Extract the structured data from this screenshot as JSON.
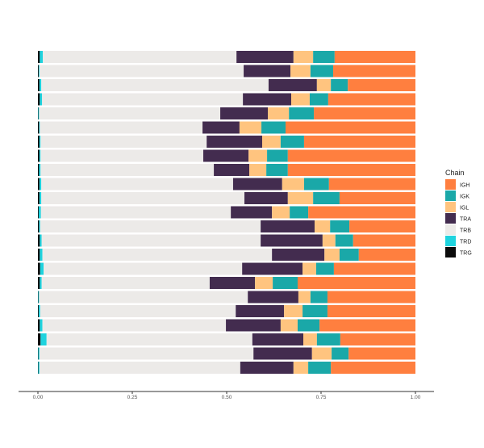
{
  "chart_data": {
    "type": "bar",
    "orientation": "horizontal",
    "stacked": true,
    "xlim": [
      0,
      1
    ],
    "x_ticks": [
      "0.00",
      "0.25",
      "0.50",
      "0.75",
      "1.00"
    ],
    "xlabel": "",
    "ylabel": "",
    "grid": false,
    "legend": {
      "title": "Chain",
      "placement": "right"
    },
    "stack_order": [
      "TRG",
      "TRD",
      "TRB",
      "TRA",
      "IGL",
      "IGK",
      "IGH"
    ],
    "series": [
      {
        "name": "IGH",
        "color": "#FF7F3F",
        "values": [
          0.214,
          0.218,
          0.179,
          0.231,
          0.269,
          0.344,
          0.295,
          0.338,
          0.338,
          0.229,
          0.201,
          0.284,
          0.175,
          0.165,
          0.15,
          0.216,
          0.312,
          0.233,
          0.233,
          0.254,
          0.199,
          0.177,
          0.224
        ]
      },
      {
        "name": "IGK",
        "color": "#1AA8A8",
        "values": [
          0.057,
          0.06,
          0.045,
          0.049,
          0.066,
          0.064,
          0.062,
          0.055,
          0.057,
          0.066,
          0.07,
          0.049,
          0.051,
          0.047,
          0.051,
          0.047,
          0.066,
          0.045,
          0.066,
          0.058,
          0.062,
          0.045,
          0.06
        ]
      },
      {
        "name": "IGL",
        "color": "#FFC47F",
        "values": [
          0.052,
          0.053,
          0.037,
          0.049,
          0.056,
          0.058,
          0.049,
          0.049,
          0.045,
          0.058,
          0.067,
          0.047,
          0.041,
          0.034,
          0.04,
          0.036,
          0.047,
          0.032,
          0.049,
          0.045,
          0.036,
          0.052,
          0.039
        ]
      },
      {
        "name": "TRA",
        "color": "#432C4F",
        "values": [
          0.151,
          0.124,
          0.128,
          0.128,
          0.126,
          0.098,
          0.147,
          0.12,
          0.094,
          0.13,
          0.115,
          0.109,
          0.143,
          0.164,
          0.139,
          0.16,
          0.12,
          0.134,
          0.128,
          0.145,
          0.135,
          0.155,
          0.141
        ]
      },
      {
        "name": "TRB",
        "color": "#ECEAE8",
        "values": [
          0.513,
          0.541,
          0.602,
          0.532,
          0.48,
          0.431,
          0.44,
          0.431,
          0.459,
          0.508,
          0.538,
          0.503,
          0.584,
          0.58,
          0.608,
          0.526,
          0.445,
          0.553,
          0.518,
          0.486,
          0.545,
          0.567,
          0.532
        ]
      },
      {
        "name": "TRD",
        "color": "#1FD3DE",
        "values": [
          0.008,
          0.002,
          0.005,
          0.006,
          0.002,
          0.002,
          0.003,
          0.003,
          0.004,
          0.005,
          0.005,
          0.006,
          0.003,
          0.005,
          0.007,
          0.009,
          0.005,
          0.002,
          0.004,
          0.007,
          0.016,
          0.003,
          0.003
        ]
      },
      {
        "name": "TRG",
        "color": "#0B0B0B",
        "values": [
          0.005,
          0.002,
          0.004,
          0.005,
          0.001,
          0.003,
          0.004,
          0.004,
          0.003,
          0.004,
          0.004,
          0.002,
          0.003,
          0.005,
          0.005,
          0.006,
          0.005,
          0.001,
          0.002,
          0.005,
          0.007,
          0.001,
          0.001
        ]
      }
    ]
  }
}
